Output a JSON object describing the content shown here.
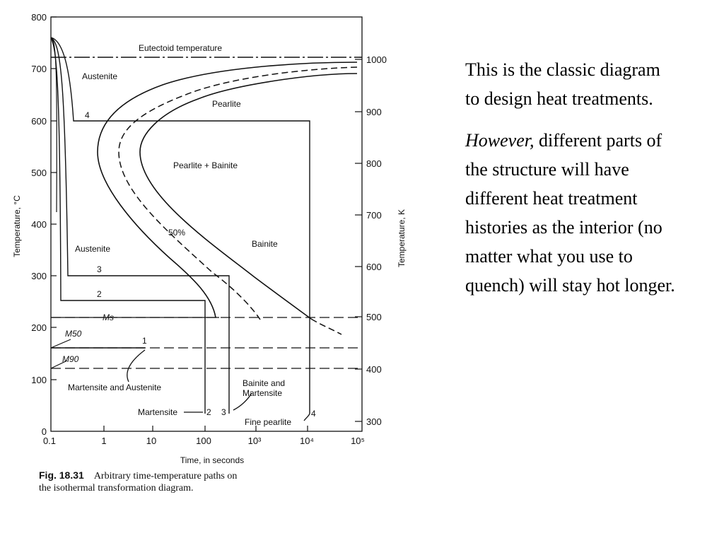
{
  "diagram": {
    "y_axis_left": {
      "label": "Temperature, °C",
      "ticks": [
        "800",
        "700",
        "600",
        "500",
        "400",
        "300",
        "200",
        "100",
        "0"
      ]
    },
    "y_axis_right": {
      "label": "Temperature, K",
      "ticks": [
        "1000",
        "900",
        "800",
        "700",
        "600",
        "500",
        "400",
        "300"
      ]
    },
    "x_axis": {
      "label": "Time, in seconds",
      "ticks": [
        "0.1",
        "1",
        "10",
        "100",
        "10³",
        "10⁴",
        "10⁵"
      ]
    },
    "regions": {
      "eutectoid": "Eutectoid temperature",
      "austenite_top": "Austenite",
      "pearlite": "Pearlite",
      "pearlite_bainite": "Pearlite + Bainite",
      "bainite": "Bainite",
      "austenite_low": "Austenite",
      "fifty_percent": "50%",
      "ms": "Ms",
      "m50": "M50",
      "m90": "M90",
      "martensite_austenite": "Martensite and Austenite",
      "bainite_martensite_1": "Bainite and",
      "bainite_martensite_2": "Martensite",
      "martensite": "Martensite",
      "fine_pearlite": "Fine pearlite"
    },
    "path_numbers": {
      "p1": "1",
      "p2": "2",
      "p3": "3",
      "p4": "4",
      "p2_end": "2",
      "p3_end": "3",
      "p4_end": "4"
    }
  },
  "caption": {
    "label": "Fig. 18.31",
    "text": "Arbitrary time-temperature paths on the isothermal transformation diagram."
  },
  "note": {
    "p1": "This is the classic diagram to design heat treatments.",
    "p2_em": "However,",
    "p2_rest": " different parts of the structure will have different heat treatment histories as the interior (no matter what you use to quench) will stay hot longer."
  }
}
